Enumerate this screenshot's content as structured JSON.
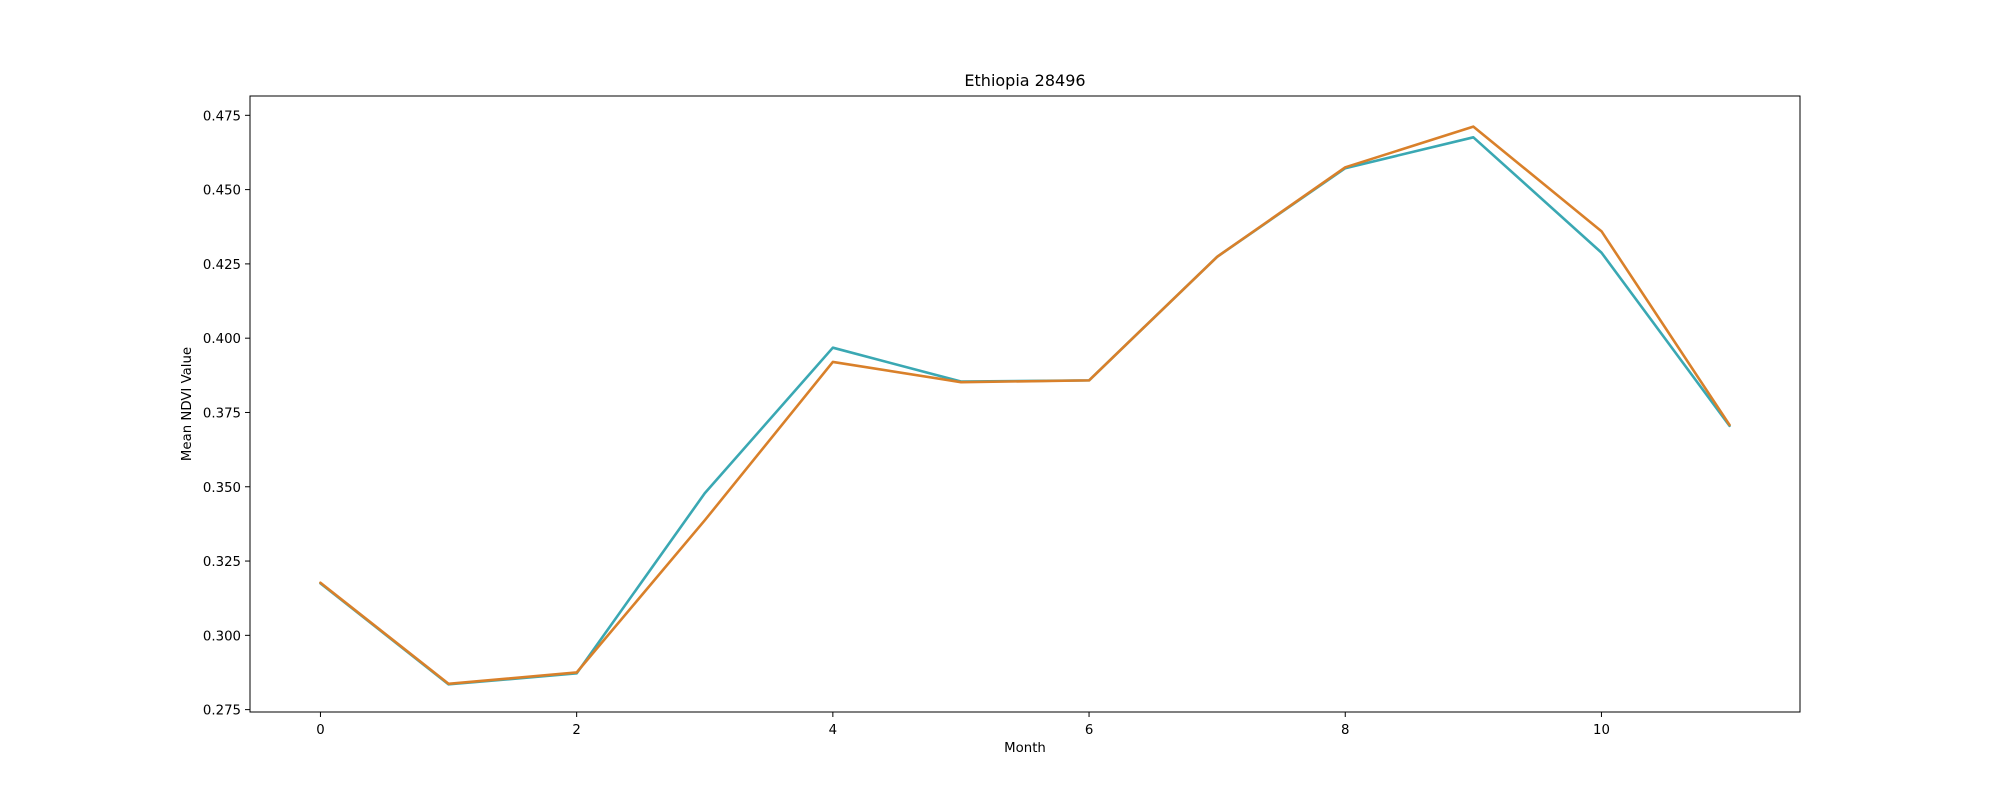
{
  "chart_data": {
    "type": "line",
    "title": "Ethiopia 28496",
    "xlabel": "Month",
    "ylabel": "Mean NDVI Value",
    "x": [
      0,
      1,
      2,
      3,
      4,
      5,
      6,
      7,
      8,
      9,
      10,
      11
    ],
    "xlim": [
      -0.55,
      11.55
    ],
    "ylim": [
      0.2742,
      0.4815
    ],
    "xticks": [
      0,
      2,
      4,
      6,
      8,
      10
    ],
    "xtick_labels": [
      "0",
      "2",
      "4",
      "6",
      "8",
      "10"
    ],
    "yticks": [
      0.275,
      0.3,
      0.325,
      0.35,
      0.375,
      0.4,
      0.425,
      0.45,
      0.475
    ],
    "ytick_labels": [
      "0.275",
      "0.300",
      "0.325",
      "0.350",
      "0.375",
      "0.400",
      "0.425",
      "0.450",
      "0.475"
    ],
    "grid": false,
    "series": [
      {
        "name": "series-1",
        "color": "#3aa8b3",
        "values": [
          0.3175,
          0.2835,
          0.2872,
          0.3478,
          0.3968,
          0.3854,
          0.3858,
          0.4274,
          0.4572,
          0.4676,
          0.4288,
          0.3705
        ]
      },
      {
        "name": "series-2",
        "color": "#d9802a",
        "values": [
          0.3177,
          0.2837,
          0.2875,
          0.3387,
          0.392,
          0.3852,
          0.3858,
          0.4274,
          0.4575,
          0.4712,
          0.436,
          0.3708
        ]
      }
    ]
  }
}
